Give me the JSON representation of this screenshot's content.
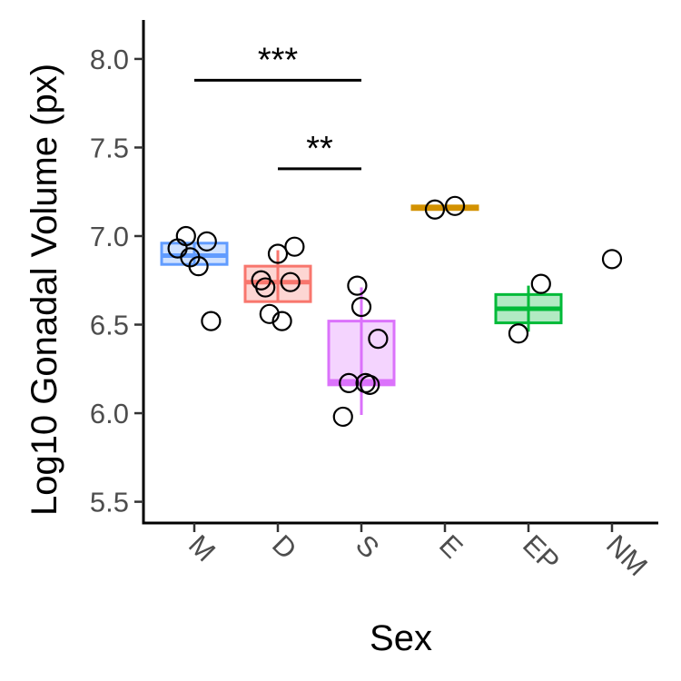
{
  "chart_data": {
    "type": "box",
    "xlabel": "Sex",
    "ylabel": "Log10 Gonadal Volume (px)",
    "ylim": [
      5.38,
      8.22
    ],
    "yticks": [
      5.5,
      6.0,
      6.5,
      7.0,
      7.5,
      8.0
    ],
    "ytick_labels": [
      "5.5",
      "6.0",
      "6.5",
      "7.0",
      "7.5",
      "8.0"
    ],
    "categories": [
      "M",
      "D",
      "S",
      "E",
      "EP",
      "NM"
    ],
    "colors": {
      "M": "#619CFF",
      "D": "#F8766D",
      "S": "#DB72FB",
      "E": "#D39200",
      "EP": "#00BA38",
      "NM": "#999999"
    },
    "groups": [
      {
        "name": "M",
        "q1": 6.84,
        "median": 6.89,
        "q3": 6.96,
        "whisker_low": 6.84,
        "whisker_high": 6.96,
        "points": [
          [
            -0.2,
            6.93
          ],
          [
            -0.1,
            7.0
          ],
          [
            -0.05,
            6.88
          ],
          [
            0.05,
            6.83
          ],
          [
            0.15,
            6.97
          ],
          [
            0.2,
            6.52
          ]
        ]
      },
      {
        "name": "D",
        "q1": 6.63,
        "median": 6.74,
        "q3": 6.83,
        "whisker_low": 6.63,
        "whisker_high": 6.92,
        "points": [
          [
            -0.2,
            6.75
          ],
          [
            -0.15,
            6.71
          ],
          [
            -0.1,
            6.56
          ],
          [
            0.0,
            6.9
          ],
          [
            0.05,
            6.52
          ],
          [
            0.15,
            6.74
          ],
          [
            0.2,
            6.94
          ]
        ]
      },
      {
        "name": "S",
        "q1": 6.16,
        "median": 6.18,
        "q3": 6.52,
        "whisker_low": 5.99,
        "whisker_high": 6.71,
        "points": [
          [
            -0.22,
            5.98
          ],
          [
            -0.15,
            6.17
          ],
          [
            -0.05,
            6.72
          ],
          [
            0.0,
            6.6
          ],
          [
            0.05,
            6.17
          ],
          [
            0.1,
            6.16
          ],
          [
            0.2,
            6.42
          ]
        ]
      },
      {
        "name": "E",
        "q1": 7.15,
        "median": 7.16,
        "q3": 7.17,
        "whisker_low": 7.15,
        "whisker_high": 7.17,
        "points": [
          [
            -0.12,
            7.15
          ],
          [
            0.12,
            7.17
          ]
        ]
      },
      {
        "name": "EP",
        "q1": 6.51,
        "median": 6.59,
        "q3": 6.67,
        "whisker_low": 6.46,
        "whisker_high": 6.72,
        "points": [
          [
            -0.12,
            6.45
          ],
          [
            0.15,
            6.73
          ]
        ]
      },
      {
        "name": "NM",
        "q1": null,
        "median": null,
        "q3": null,
        "whisker_low": null,
        "whisker_high": null,
        "points": [
          [
            0.0,
            6.87
          ]
        ]
      }
    ],
    "significance": [
      {
        "from": "M",
        "to": "S",
        "y": 7.88,
        "label": "***"
      },
      {
        "from": "D",
        "to": "S",
        "y": 7.38,
        "label": "**"
      }
    ],
    "grid": false,
    "legend": "none"
  }
}
